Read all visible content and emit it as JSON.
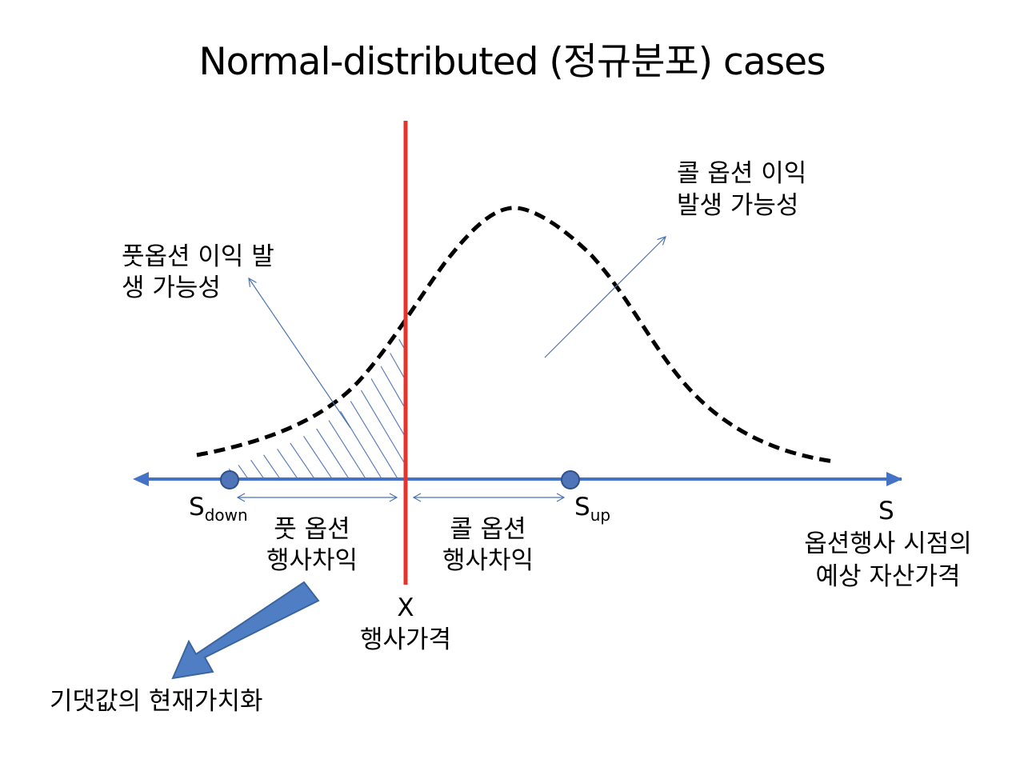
{
  "title": "Normal-distributed (정규분포) cases",
  "colors": {
    "axis": "#4472c4",
    "strike_line": "#e8332b",
    "curve": "#000000",
    "thin_arrow": "#4a73b5",
    "hatch": "#5b7fbf",
    "block_arrow": "#4f7ec4"
  },
  "labels": {
    "call_profit_line1": "콜 옵션 이익",
    "call_profit_line2": "발생 가능성",
    "put_profit_line1": "풋옵션 이익 발",
    "put_profit_line2": "생 가능성",
    "s_down_main": "S",
    "s_down_sub": "down",
    "s_up_main": "S",
    "s_up_sub": "up",
    "s_axis": "S",
    "s_axis_desc_line1": "옵션행사 시점의",
    "s_axis_desc_line2": "예상 자산가격",
    "put_exercise_line1": "풋 옵션",
    "put_exercise_line2": "행사차익",
    "call_exercise_line1": "콜 옵션",
    "call_exercise_line2": "행사차익",
    "strike_symbol": "X",
    "strike_name": "행사가격",
    "present_value": "기댓값의 현재가치화"
  }
}
